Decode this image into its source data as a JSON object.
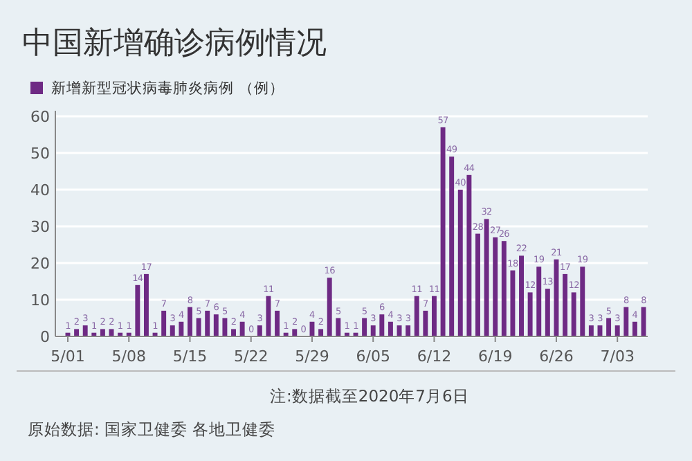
{
  "chart_data": {
    "type": "bar",
    "title": "中国新增确诊病例情况",
    "categories": [
      "5/01",
      null,
      null,
      null,
      null,
      null,
      null,
      "5/08",
      null,
      null,
      null,
      null,
      null,
      null,
      "5/15",
      null,
      null,
      null,
      null,
      null,
      null,
      "5/22",
      null,
      null,
      null,
      null,
      null,
      null,
      "5/29",
      null,
      null,
      null,
      null,
      null,
      null,
      "6/05",
      null,
      null,
      null,
      null,
      null,
      null,
      "6/12",
      null,
      null,
      null,
      null,
      null,
      null,
      "6/19",
      null,
      null,
      null,
      null,
      null,
      null,
      "6/26",
      null,
      null,
      null,
      null,
      null,
      null,
      "7/03",
      null,
      null,
      null
    ],
    "series": [
      {
        "name": "新增新型冠状病毒肺炎病例 （例）",
        "color": "#6e2a84",
        "values": [
          1,
          2,
          3,
          1,
          2,
          2,
          1,
          1,
          14,
          17,
          1,
          7,
          3,
          4,
          8,
          5,
          7,
          6,
          5,
          2,
          4,
          0,
          3,
          11,
          7,
          1,
          2,
          0,
          4,
          2,
          16,
          5,
          1,
          1,
          5,
          3,
          6,
          4,
          3,
          3,
          11,
          7,
          11,
          57,
          49,
          40,
          44,
          28,
          32,
          27,
          26,
          18,
          22,
          12,
          19,
          13,
          21,
          17,
          12,
          19,
          3,
          3,
          5,
          3,
          8,
          4,
          8
        ]
      }
    ],
    "ylim": [
      0,
      60
    ],
    "yticks": [
      0,
      10,
      20,
      30,
      40,
      50,
      60
    ],
    "grid": "y",
    "legend": "top left",
    "data_labels": true,
    "annotations": [
      "注:数据截至2020年7月6日",
      "原始数据: 国家卫健委 各地卫健委"
    ]
  }
}
